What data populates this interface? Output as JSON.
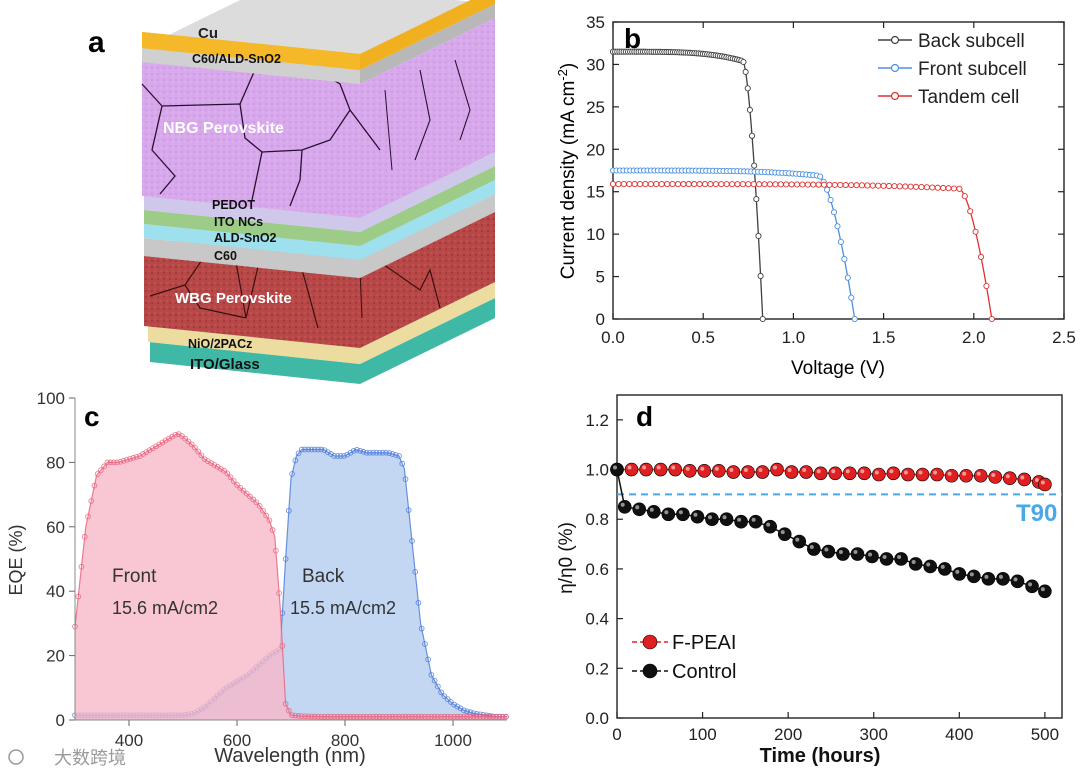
{
  "panels": {
    "a": {
      "letter": "a",
      "layers": {
        "cu": "Cu",
        "c60_sno2_top": "C60/ALD-SnO2",
        "nbg": "NBG Perovskite",
        "pedot": "PEDOT",
        "ito_ncs": "ITO NCs",
        "ald_sno2": "ALD-SnO2",
        "c60": "C60",
        "wbg": "WBG Perovskite",
        "nio": "NiO/2PACz",
        "ito_glass": "ITO/Glass"
      }
    },
    "b": {
      "letter": "b"
    },
    "c": {
      "letter": "c"
    },
    "d": {
      "letter": "d"
    }
  },
  "watermark": "大数跨境",
  "chart_data": [
    {
      "panel": "b",
      "type": "line",
      "title": "",
      "xlabel": "Voltage (V)",
      "ylabel": "Current density (mA cm-2)",
      "xlim": [
        0,
        2.5
      ],
      "ylim": [
        0,
        35
      ],
      "xticks": [
        "0.0",
        "0.5",
        "1.0",
        "1.5",
        "2.0",
        "2.5"
      ],
      "yticks": [
        "0",
        "5",
        "10",
        "15",
        "20",
        "25",
        "30",
        "35"
      ],
      "legend": "top-right",
      "series": [
        {
          "name": "Back subcell",
          "color": "#404040",
          "jsc": 31.5,
          "voc": 0.83,
          "knee": 0.72,
          "x": [
            0,
            0.3,
            0.6,
            0.72,
            0.78,
            0.83
          ],
          "y": [
            31.5,
            31.3,
            30.8,
            29.5,
            20,
            0
          ]
        },
        {
          "name": "Front subcell",
          "color": "#4a90e2",
          "jsc": 17.5,
          "voc": 1.34,
          "knee": 1.14,
          "x": [
            0,
            0.5,
            1.0,
            1.14,
            1.25,
            1.34
          ],
          "y": [
            17.5,
            17.4,
            17.3,
            16.8,
            12,
            0
          ]
        },
        {
          "name": "Tandem cell",
          "color": "#e03030",
          "jsc": 15.9,
          "voc": 2.1,
          "knee": 1.92,
          "x": [
            0,
            1.0,
            1.8,
            1.92,
            2.02,
            2.1
          ],
          "y": [
            15.9,
            15.8,
            15.5,
            14.8,
            10,
            0
          ]
        }
      ]
    },
    {
      "panel": "c",
      "type": "area",
      "title": "",
      "xlabel": "Wavelength (nm)",
      "ylabel": "EQE (%)",
      "xlim": [
        300,
        1100
      ],
      "ylim": [
        0,
        100
      ],
      "xticks": [
        "400",
        "600",
        "800",
        "1000"
      ],
      "yticks": [
        "0",
        "20",
        "40",
        "60",
        "80",
        "100"
      ],
      "series": [
        {
          "name": "Front",
          "label": "Front",
          "jsc_label": "15.6 mA/cm2",
          "color": "#e8607c",
          "fill": "#f7b8c8",
          "x": [
            300,
            320,
            340,
            360,
            380,
            400,
            420,
            440,
            460,
            480,
            490,
            500,
            520,
            540,
            560,
            580,
            600,
            620,
            640,
            660,
            670,
            680,
            690,
            700,
            720,
            760,
            800,
            900,
            1000,
            1100
          ],
          "y": [
            29,
            60,
            76,
            80,
            80,
            81,
            82,
            84,
            86,
            88,
            89,
            88,
            85,
            81,
            79,
            77,
            73,
            70,
            67,
            62,
            57,
            35,
            5,
            1.5,
            1.2,
            1,
            1,
            1,
            1,
            1
          ]
        },
        {
          "name": "Back",
          "label": "Back",
          "jsc_label": "15.5 mA/cm2",
          "color": "#4a78d8",
          "fill": "#b8d0f0",
          "x": [
            300,
            400,
            500,
            520,
            540,
            560,
            580,
            600,
            620,
            640,
            660,
            680,
            690,
            700,
            710,
            720,
            740,
            760,
            780,
            800,
            820,
            840,
            860,
            880,
            900,
            910,
            920,
            940,
            960,
            980,
            1000,
            1020,
            1040,
            1060,
            1080,
            1100
          ],
          "y": [
            1.5,
            1.5,
            1.5,
            2,
            4,
            7,
            10,
            12,
            14,
            17,
            20,
            22,
            50,
            75,
            82,
            84,
            84,
            84,
            82,
            82,
            84,
            83,
            83,
            83,
            82,
            78,
            62,
            30,
            14,
            8,
            5,
            3,
            2,
            1.5,
            1,
            1
          ]
        }
      ]
    },
    {
      "panel": "d",
      "type": "scatter",
      "title": "",
      "xlabel": "Time (hours)",
      "ylabel": "η/η0 (%)",
      "xlim": [
        0,
        520
      ],
      "ylim": [
        0,
        1.3
      ],
      "xticks": [
        "0",
        "100",
        "200",
        "300",
        "400",
        "500"
      ],
      "yticks": [
        "0.0",
        "0.2",
        "0.4",
        "0.6",
        "0.8",
        "1.0",
        "1.2"
      ],
      "reference_line": {
        "label": "T90",
        "y": 0.9,
        "color": "#4aa8e8"
      },
      "series": [
        {
          "name": "F-PEAI",
          "color": "#e02020",
          "x": [
            0,
            17,
            34,
            51,
            68,
            85,
            102,
            119,
            136,
            153,
            170,
            187,
            204,
            221,
            238,
            255,
            272,
            289,
            306,
            323,
            340,
            357,
            374,
            391,
            408,
            425,
            442,
            459,
            476,
            493,
            500
          ],
          "y": [
            1.0,
            1.0,
            1.0,
            1.0,
            1.0,
            0.995,
            0.995,
            0.995,
            0.99,
            0.99,
            0.99,
            1.0,
            0.99,
            0.99,
            0.985,
            0.985,
            0.985,
            0.985,
            0.98,
            0.985,
            0.98,
            0.98,
            0.98,
            0.975,
            0.975,
            0.975,
            0.97,
            0.965,
            0.96,
            0.95,
            0.94
          ]
        },
        {
          "name": "Control",
          "color": "#101010",
          "x": [
            0,
            9,
            26,
            43,
            60,
            77,
            94,
            111,
            128,
            145,
            162,
            179,
            196,
            213,
            230,
            247,
            264,
            281,
            298,
            315,
            332,
            349,
            366,
            383,
            400,
            417,
            434,
            451,
            468,
            485,
            500
          ],
          "y": [
            1.0,
            0.85,
            0.84,
            0.83,
            0.82,
            0.82,
            0.81,
            0.8,
            0.8,
            0.79,
            0.79,
            0.77,
            0.74,
            0.71,
            0.68,
            0.67,
            0.66,
            0.66,
            0.65,
            0.64,
            0.64,
            0.62,
            0.61,
            0.6,
            0.58,
            0.57,
            0.56,
            0.56,
            0.55,
            0.53,
            0.51
          ]
        }
      ]
    }
  ]
}
